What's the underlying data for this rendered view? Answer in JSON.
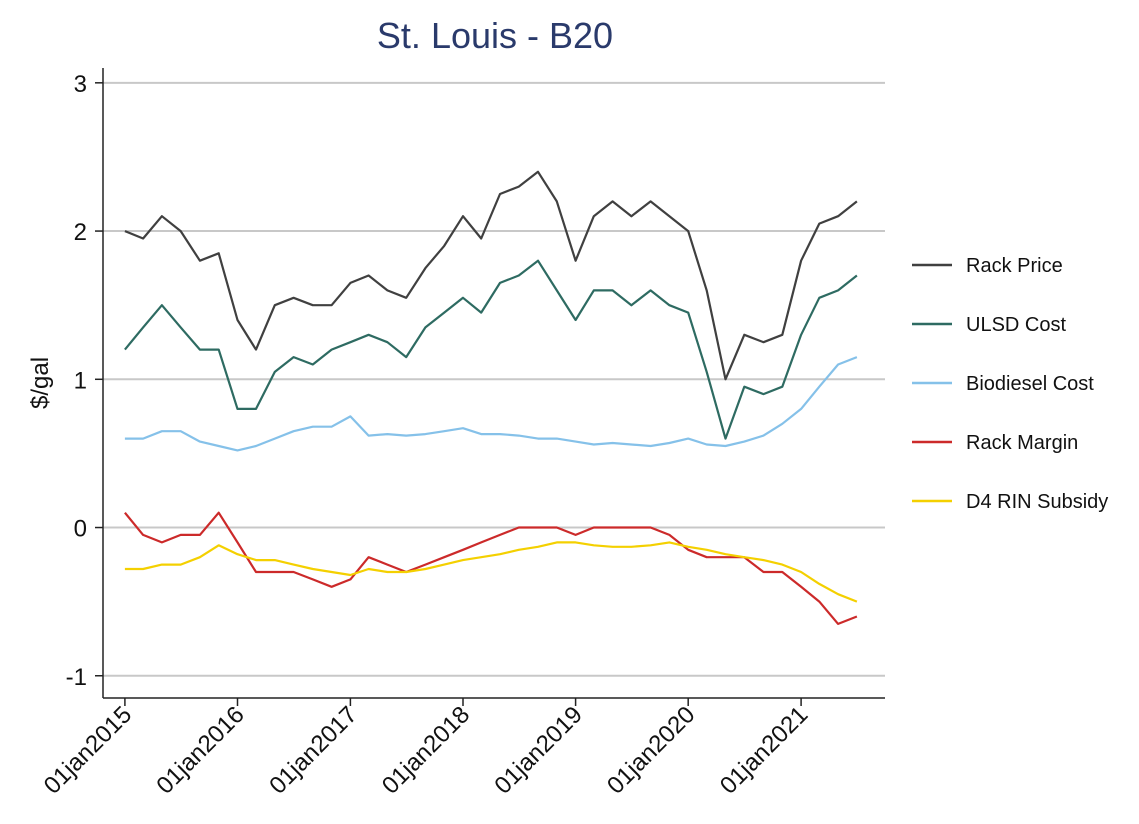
{
  "chart_data": {
    "type": "line",
    "title": "St. Louis - B20",
    "y_label": "$/gal",
    "x": [
      "2015-01-01",
      "2015-03-01",
      "2015-05-01",
      "2015-07-01",
      "2015-09-01",
      "2015-11-01",
      "2016-01-01",
      "2016-03-01",
      "2016-05-01",
      "2016-07-01",
      "2016-09-01",
      "2016-11-01",
      "2017-01-01",
      "2017-03-01",
      "2017-05-01",
      "2017-07-01",
      "2017-09-01",
      "2017-11-01",
      "2018-01-01",
      "2018-03-01",
      "2018-05-01",
      "2018-07-01",
      "2018-09-01",
      "2018-11-01",
      "2019-01-01",
      "2019-03-01",
      "2019-05-01",
      "2019-07-01",
      "2019-09-01",
      "2019-11-01",
      "2020-01-01",
      "2020-03-01",
      "2020-05-01",
      "2020-07-01",
      "2020-09-01",
      "2020-11-01",
      "2021-01-01",
      "2021-03-01",
      "2021-05-01",
      "2021-07-01"
    ],
    "series": [
      {
        "name": "Rack Price",
        "color": "#404040",
        "values": [
          2.0,
          1.95,
          2.1,
          2.0,
          1.8,
          1.85,
          1.4,
          1.2,
          1.5,
          1.55,
          1.5,
          1.5,
          1.65,
          1.7,
          1.6,
          1.55,
          1.75,
          1.9,
          2.1,
          1.95,
          2.25,
          2.3,
          2.4,
          2.2,
          1.8,
          2.1,
          2.2,
          2.1,
          2.2,
          2.1,
          2.0,
          1.6,
          1.0,
          1.3,
          1.25,
          1.3,
          1.8,
          2.05,
          2.1,
          2.2
        ]
      },
      {
        "name": "ULSD Cost",
        "color": "#2e6b62",
        "values": [
          1.2,
          1.35,
          1.5,
          1.35,
          1.2,
          1.2,
          0.8,
          0.8,
          1.05,
          1.15,
          1.1,
          1.2,
          1.25,
          1.3,
          1.25,
          1.15,
          1.35,
          1.45,
          1.55,
          1.45,
          1.65,
          1.7,
          1.8,
          1.6,
          1.4,
          1.6,
          1.6,
          1.5,
          1.6,
          1.5,
          1.45,
          1.05,
          0.6,
          0.95,
          0.9,
          0.95,
          1.3,
          1.55,
          1.6,
          1.7
        ]
      },
      {
        "name": "Biodiesel Cost",
        "color": "#85c1e9",
        "values": [
          0.6,
          0.6,
          0.65,
          0.65,
          0.58,
          0.55,
          0.52,
          0.55,
          0.6,
          0.65,
          0.68,
          0.68,
          0.75,
          0.62,
          0.63,
          0.62,
          0.63,
          0.65,
          0.67,
          0.63,
          0.63,
          0.62,
          0.6,
          0.6,
          0.58,
          0.56,
          0.57,
          0.56,
          0.55,
          0.57,
          0.6,
          0.56,
          0.55,
          0.58,
          0.62,
          0.7,
          0.8,
          0.95,
          1.1,
          1.15
        ]
      },
      {
        "name": "Rack Margin",
        "color": "#cc2a2a",
        "values": [
          0.1,
          -0.05,
          -0.1,
          -0.05,
          -0.05,
          0.1,
          -0.1,
          -0.3,
          -0.3,
          -0.3,
          -0.35,
          -0.4,
          -0.35,
          -0.2,
          -0.25,
          -0.3,
          -0.25,
          -0.2,
          -0.15,
          -0.1,
          -0.05,
          0.0,
          0.0,
          0.0,
          -0.05,
          0.0,
          0.0,
          0.0,
          0.0,
          -0.05,
          -0.15,
          -0.2,
          -0.2,
          -0.2,
          -0.3,
          -0.3,
          -0.4,
          -0.5,
          -0.65,
          -0.6
        ]
      },
      {
        "name": "D4 RIN Subsidy",
        "color": "#f4d000",
        "values": [
          -0.28,
          -0.28,
          -0.25,
          -0.25,
          -0.2,
          -0.12,
          -0.18,
          -0.22,
          -0.22,
          -0.25,
          -0.28,
          -0.3,
          -0.32,
          -0.28,
          -0.3,
          -0.3,
          -0.28,
          -0.25,
          -0.22,
          -0.2,
          -0.18,
          -0.15,
          -0.13,
          -0.1,
          -0.1,
          -0.12,
          -0.13,
          -0.13,
          -0.12,
          -0.1,
          -0.13,
          -0.15,
          -0.18,
          -0.2,
          -0.22,
          -0.25,
          -0.3,
          -0.38,
          -0.45,
          -0.5
        ]
      }
    ],
    "xlim": [
      "2014-10-22",
      "2021-09-30"
    ],
    "xticks": [
      {
        "value": "2015-01-01",
        "label": "01jan2015"
      },
      {
        "value": "2016-01-01",
        "label": "01jan2016"
      },
      {
        "value": "2017-01-01",
        "label": "01jan2017"
      },
      {
        "value": "2018-01-01",
        "label": "01jan2018"
      },
      {
        "value": "2019-01-01",
        "label": "01jan2019"
      },
      {
        "value": "2020-01-01",
        "label": "01jan2020"
      },
      {
        "value": "2021-01-01",
        "label": "01jan2021"
      }
    ],
    "ylim": [
      -1.15,
      3.1
    ],
    "yticks": [
      -1,
      0,
      1,
      2,
      3
    ],
    "grid": true,
    "legend": "right"
  }
}
